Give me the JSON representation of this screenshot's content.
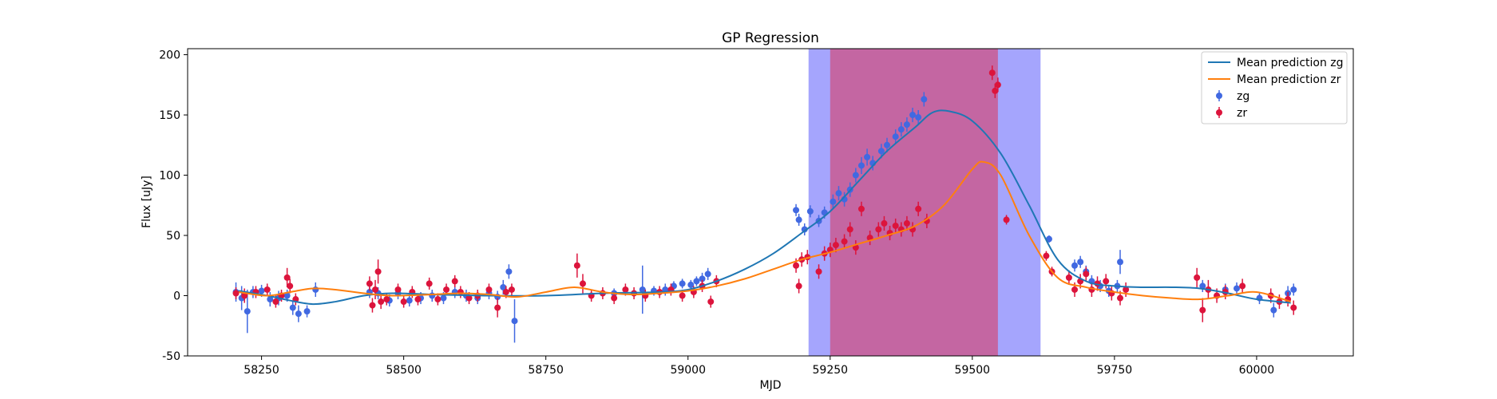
{
  "chart_data": {
    "type": "scatter",
    "title": "GP Regression",
    "xlabel": "MJD",
    "ylabel": "Flux [uJy]",
    "xlim": [
      58120,
      60170
    ],
    "ylim": [
      -50,
      205
    ],
    "xticks": [
      58250,
      58500,
      58750,
      59000,
      59250,
      59500,
      59750,
      60000
    ],
    "yticks": [
      -50,
      0,
      50,
      100,
      150,
      200
    ],
    "legend_position": "top-right",
    "shaded_regions": [
      {
        "x0": 59212,
        "x1": 59620,
        "color": "#a5a5fd"
      },
      {
        "x0": 59250,
        "x1": 59545,
        "color": "#c466a2"
      }
    ],
    "series": [
      {
        "name": "Mean prediction zg",
        "kind": "line",
        "color": "#1f77b4",
        "x": [
          58210,
          58260,
          58300,
          58340,
          58380,
          58430,
          58480,
          58550,
          58650,
          58750,
          58850,
          58950,
          59000,
          59050,
          59100,
          59150,
          59200,
          59250,
          59300,
          59350,
          59400,
          59430,
          59460,
          59500,
          59550,
          59600,
          59650,
          59700,
          59750,
          59800,
          59850,
          59900,
          59950,
          60000,
          60060
        ],
        "y": [
          4,
          0,
          -4,
          -7,
          -5,
          0,
          2,
          1,
          0,
          0,
          2,
          3,
          5,
          12,
          22,
          35,
          52,
          70,
          95,
          120,
          140,
          152,
          153,
          145,
          118,
          75,
          30,
          12,
          8,
          7,
          7,
          6,
          2,
          -3,
          -6
        ]
      },
      {
        "name": "Mean prediction zr",
        "kind": "line",
        "color": "#ff7f0e",
        "x": [
          58210,
          58260,
          58300,
          58340,
          58380,
          58430,
          58480,
          58550,
          58600,
          58650,
          58700,
          58750,
          58800,
          58850,
          58900,
          58950,
          59000,
          59050,
          59100,
          59150,
          59200,
          59250,
          59300,
          59350,
          59400,
          59450,
          59500,
          59520,
          59550,
          59600,
          59650,
          59700,
          59750,
          59800,
          59850,
          59900,
          59950,
          60000,
          60060
        ],
        "y": [
          3,
          0,
          3,
          6,
          5,
          2,
          0,
          1,
          2,
          1,
          -1,
          3,
          7,
          3,
          1,
          2,
          4,
          8,
          14,
          22,
          30,
          36,
          43,
          50,
          58,
          75,
          105,
          111,
          100,
          50,
          15,
          7,
          3,
          0,
          -2,
          -3,
          0,
          3,
          -5
        ]
      },
      {
        "name": "zg",
        "kind": "errorbar",
        "color": "#4169e1",
        "x": [
          58205,
          58215,
          58225,
          58235,
          58250,
          58265,
          58280,
          58295,
          58305,
          58315,
          58330,
          58345,
          58440,
          58455,
          58475,
          58490,
          58510,
          58530,
          58550,
          58570,
          58590,
          58610,
          58630,
          58650,
          58665,
          58675,
          58685,
          58695,
          58870,
          58920,
          58940,
          58960,
          58975,
          58990,
          59005,
          59015,
          59025,
          59035,
          59190,
          59195,
          59205,
          59215,
          59230,
          59240,
          59255,
          59265,
          59275,
          59285,
          59295,
          59305,
          59315,
          59325,
          59340,
          59350,
          59365,
          59375,
          59385,
          59395,
          59405,
          59415,
          59635,
          59680,
          59690,
          59700,
          59710,
          59725,
          59740,
          59755,
          59760,
          59905,
          59945,
          59965,
          60005,
          60030,
          60055,
          60065
        ],
        "y": [
          3,
          -2,
          -13,
          3,
          4,
          -3,
          -2,
          0,
          -10,
          -15,
          -13,
          5,
          3,
          2,
          -4,
          2,
          -4,
          -2,
          0,
          -2,
          3,
          0,
          -2,
          2,
          -1,
          7,
          20,
          -21,
          2,
          5,
          4,
          5,
          8,
          10,
          9,
          12,
          14,
          18,
          71,
          63,
          55,
          70,
          62,
          69,
          78,
          85,
          80,
          88,
          100,
          108,
          115,
          110,
          120,
          125,
          132,
          138,
          142,
          150,
          148,
          163,
          47,
          25,
          28,
          20,
          12,
          8,
          4,
          8,
          28,
          8,
          5,
          6,
          -2,
          -12,
          2,
          5
        ],
        "err": [
          8,
          10,
          18,
          5,
          5,
          6,
          6,
          5,
          6,
          7,
          5,
          6,
          5,
          5,
          5,
          5,
          5,
          5,
          5,
          5,
          5,
          5,
          5,
          5,
          5,
          6,
          6,
          18,
          4,
          20,
          4,
          5,
          4,
          4,
          4,
          4,
          5,
          5,
          5,
          5,
          5,
          5,
          5,
          5,
          6,
          6,
          6,
          6,
          6,
          7,
          7,
          6,
          6,
          6,
          6,
          6,
          6,
          6,
          6,
          6,
          3,
          5,
          5,
          5,
          5,
          5,
          5,
          5,
          10,
          5,
          5,
          5,
          5,
          6,
          6,
          5
        ]
      },
      {
        "name": "zr",
        "kind": "errorbar",
        "color": "#dc143c",
        "x": [
          58205,
          58220,
          58240,
          58260,
          58275,
          58285,
          58295,
          58300,
          58310,
          58440,
          58445,
          58450,
          58455,
          58460,
          58470,
          58490,
          58500,
          58515,
          58525,
          58545,
          58560,
          58575,
          58590,
          58600,
          58615,
          58630,
          58650,
          58665,
          58680,
          58690,
          58805,
          58815,
          58830,
          58850,
          58870,
          58890,
          58905,
          58925,
          58950,
          58970,
          58990,
          59010,
          59025,
          59040,
          59050,
          59190,
          59195,
          59200,
          59210,
          59230,
          59240,
          59250,
          59260,
          59275,
          59285,
          59295,
          59305,
          59320,
          59335,
          59345,
          59355,
          59365,
          59375,
          59385,
          59395,
          59405,
          59420,
          59535,
          59540,
          59545,
          59560,
          59630,
          59640,
          59670,
          59680,
          59690,
          59700,
          59710,
          59720,
          59735,
          59745,
          59760,
          59770,
          59895,
          59905,
          59915,
          59930,
          59945,
          59975,
          60025,
          60040,
          60055,
          60065
        ],
        "y": [
          2,
          0,
          3,
          5,
          -5,
          0,
          15,
          8,
          -3,
          10,
          -8,
          5,
          20,
          -5,
          -3,
          5,
          -5,
          3,
          -3,
          10,
          -3,
          5,
          12,
          3,
          -2,
          0,
          5,
          -10,
          3,
          5,
          25,
          10,
          0,
          2,
          -2,
          5,
          2,
          0,
          3,
          5,
          0,
          3,
          8,
          -5,
          12,
          25,
          8,
          30,
          32,
          20,
          35,
          38,
          42,
          45,
          55,
          40,
          72,
          48,
          55,
          60,
          52,
          58,
          55,
          60,
          55,
          72,
          62,
          185,
          170,
          175,
          63,
          33,
          20,
          15,
          5,
          12,
          18,
          5,
          10,
          12,
          2,
          -2,
          5,
          15,
          -12,
          5,
          0,
          3,
          8,
          0,
          -5,
          -3,
          -10
        ],
        "err": [
          5,
          6,
          5,
          5,
          5,
          5,
          8,
          6,
          5,
          6,
          6,
          8,
          10,
          6,
          5,
          5,
          5,
          5,
          5,
          5,
          5,
          5,
          5,
          5,
          5,
          5,
          5,
          8,
          5,
          5,
          10,
          8,
          5,
          5,
          5,
          5,
          5,
          5,
          5,
          5,
          5,
          5,
          5,
          5,
          5,
          6,
          6,
          6,
          6,
          6,
          6,
          6,
          6,
          6,
          6,
          6,
          6,
          6,
          6,
          6,
          6,
          6,
          6,
          6,
          6,
          6,
          6,
          6,
          6,
          6,
          4,
          4,
          4,
          6,
          6,
          6,
          6,
          6,
          6,
          6,
          6,
          6,
          6,
          8,
          10,
          8,
          6,
          6,
          6,
          6,
          6,
          6,
          6
        ]
      }
    ]
  }
}
